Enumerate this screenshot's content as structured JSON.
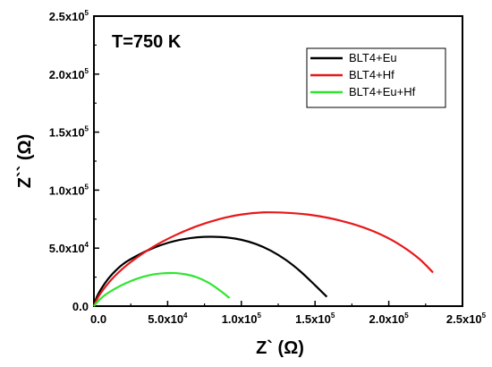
{
  "chart_data": {
    "type": "line",
    "annotation": "T=750 K",
    "xlabel": "Z` (Ω)",
    "ylabel": "Z`` (Ω)",
    "xlim": [
      0,
      250000
    ],
    "ylim": [
      0,
      250000
    ],
    "x_ticks": [
      {
        "value": 0,
        "mantissa": "0.0",
        "exp": ""
      },
      {
        "value": 50000,
        "mantissa": "5.0x10",
        "exp": "4"
      },
      {
        "value": 100000,
        "mantissa": "1.0x10",
        "exp": "5"
      },
      {
        "value": 150000,
        "mantissa": "1.5x10",
        "exp": "5"
      },
      {
        "value": 200000,
        "mantissa": "2.0x10",
        "exp": "5"
      },
      {
        "value": 250000,
        "mantissa": "2.5x10",
        "exp": "5"
      }
    ],
    "y_ticks": [
      {
        "value": 0,
        "mantissa": "0.0",
        "exp": ""
      },
      {
        "value": 50000,
        "mantissa": "5.0x10",
        "exp": "4"
      },
      {
        "value": 100000,
        "mantissa": "1.0x10",
        "exp": "5"
      },
      {
        "value": 150000,
        "mantissa": "1.5x10",
        "exp": "5"
      },
      {
        "value": 200000,
        "mantissa": "2.0x10",
        "exp": "5"
      },
      {
        "value": 250000,
        "mantissa": "2.5x10",
        "exp": "5"
      }
    ],
    "legend_position": "top-right",
    "series": [
      {
        "name": "BLT4+Eu",
        "color": "#000000",
        "x": [
          0,
          2000,
          6000,
          12000,
          20000,
          30000,
          40000,
          50000,
          60000,
          70000,
          80000,
          90000,
          100000,
          110000,
          120000,
          130000,
          140000,
          150000,
          158000
        ],
        "y": [
          0,
          8000,
          17000,
          27000,
          36500,
          44000,
          50000,
          54500,
          57500,
          59300,
          59800,
          59200,
          57200,
          53500,
          47800,
          40000,
          30000,
          18000,
          8000
        ]
      },
      {
        "name": "BLT4+Hf",
        "color": "#e8181a",
        "x": [
          0,
          3000,
          8000,
          15000,
          25000,
          40000,
          55000,
          70000,
          85000,
          100000,
          115000,
          130000,
          145000,
          160000,
          175000,
          190000,
          205000,
          220000,
          230000
        ],
        "y": [
          0,
          8000,
          17000,
          27000,
          38000,
          51000,
          61000,
          69000,
          75000,
          79000,
          80800,
          80500,
          79000,
          75800,
          71000,
          64300,
          54800,
          41500,
          29000
        ]
      },
      {
        "name": "BLT4+Eu+Hf",
        "color": "#2ee62e",
        "x": [
          0,
          3000,
          8000,
          15000,
          22000,
          30000,
          38000,
          46000,
          54000,
          62000,
          70000,
          78000,
          86000,
          92000
        ],
        "y": [
          0,
          4500,
          10000,
          15500,
          20000,
          24000,
          26800,
          28200,
          28500,
          27500,
          24800,
          20000,
          13000,
          7000
        ]
      }
    ]
  }
}
